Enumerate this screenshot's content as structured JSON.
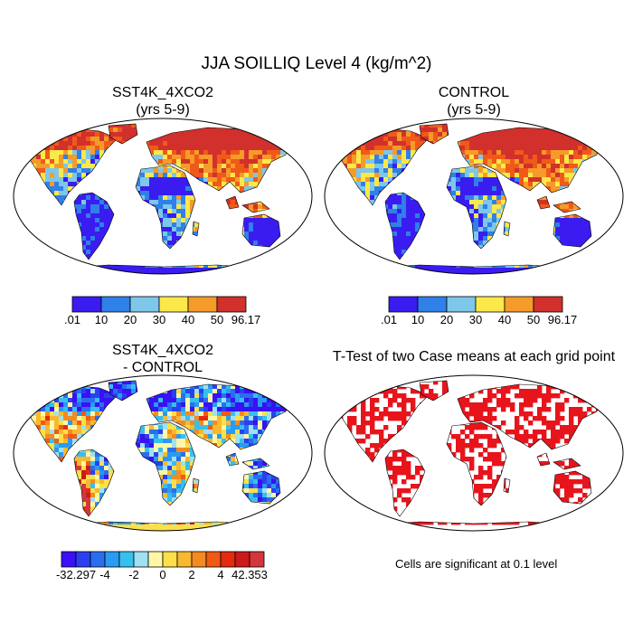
{
  "title": "JJA SOILLIQ Level 4 (kg/m^2)",
  "panels": [
    {
      "id": "sst4k",
      "title_line1": "SST4K_4XCO2",
      "title_line2": "(yrs 5-9)"
    },
    {
      "id": "control",
      "title_line1": "CONTROL",
      "title_line2": "(yrs 5-9)"
    },
    {
      "id": "diff",
      "title_line1": "SST4K_4XCO2",
      "title_line2": "- CONTROL"
    },
    {
      "id": "ttest",
      "title_line1": "T-Test of two Case means at each grid point",
      "title_line2": ""
    }
  ],
  "colorbar_abs": {
    "labels": [
      ".01",
      "10",
      "20",
      "30",
      "40",
      "50",
      "96.17"
    ],
    "colors": [
      "#3a1cf0",
      "#2f80e8",
      "#7ec6ea",
      "#fbe84a",
      "#f59b2a",
      "#f05a18",
      "#d2302c"
    ]
  },
  "colorbar_diff": {
    "labels": [
      "-32.297",
      "-4",
      "-2",
      "0",
      "2",
      "4",
      "42.353"
    ],
    "colors": [
      "#3a10f5",
      "#2a40f0",
      "#2a6ef0",
      "#2a9af2",
      "#36c0f0",
      "#9fe0f2",
      "#fff6a8",
      "#fbe04a",
      "#f8b830",
      "#f58a20",
      "#f05a14",
      "#e52a10",
      "#cc1a1a",
      "#d4363c"
    ]
  },
  "significance_note": "Cells are significant at 0.1 level",
  "significance_color": "#e8141c"
}
